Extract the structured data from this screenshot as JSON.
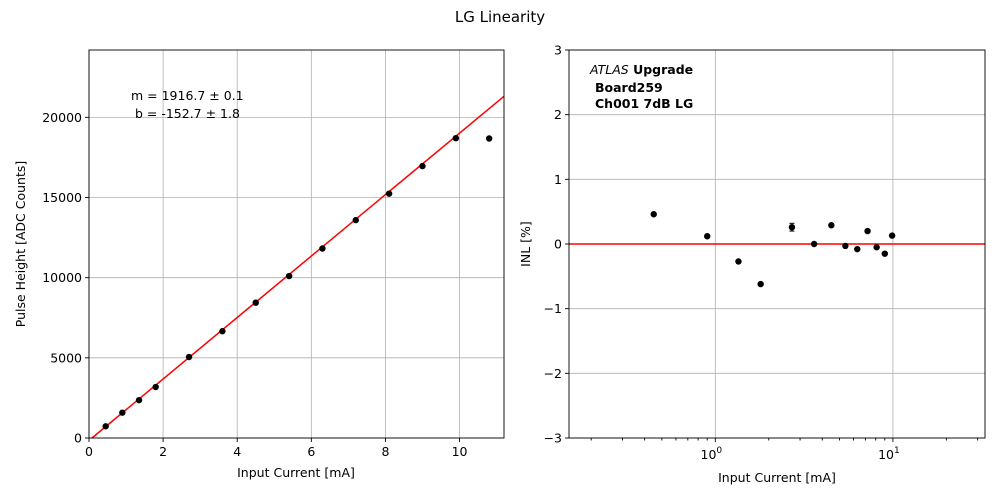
{
  "figure": {
    "title": "LG Linearity"
  },
  "chart_data": [
    {
      "type": "scatter",
      "xlabel": "Input Current [mA]",
      "ylabel": "Pulse Height [ADC Counts]",
      "xlim": [
        0,
        11.2
      ],
      "ylim": [
        0,
        24200
      ],
      "xticks": [
        0,
        2,
        4,
        6,
        8,
        10
      ],
      "xtick_labels": [
        "0",
        "2",
        "4",
        "6",
        "8",
        "10"
      ],
      "yticks": [
        0,
        5000,
        10000,
        15000,
        20000
      ],
      "ytick_labels": [
        "0",
        "5000",
        "10000",
        "15000",
        "20000"
      ],
      "grid": true,
      "points_color": "#000000",
      "fit_color": "#ff0000",
      "fit": {
        "m": 1916.7,
        "b": -152.7
      },
      "fit_text_lines": [
        "m = 1916.7 ± 0.1",
        " b = -152.7 ± 1.8"
      ],
      "x": [
        0.45,
        0.9,
        1.35,
        1.8,
        2.7,
        3.6,
        4.5,
        5.4,
        6.3,
        7.2,
        8.1,
        9.0,
        9.9,
        10.8
      ],
      "y": [
        730,
        1580,
        2360,
        3180,
        5050,
        6660,
        8440,
        10100,
        11820,
        13590,
        15240,
        16960,
        18700,
        18680
      ]
    },
    {
      "type": "scatter",
      "xlabel": "Input Current [mA]",
      "ylabel": "INL [%]",
      "xscale": "log",
      "xlim": [
        0.15,
        33
      ],
      "ylim": [
        -3,
        3
      ],
      "xticks_major": [
        1,
        10
      ],
      "xtick_labels": [
        {
          "base": "10",
          "exp": "0"
        },
        {
          "base": "10",
          "exp": "1"
        }
      ],
      "yticks": [
        -3,
        -2,
        -1,
        0,
        1,
        2,
        3
      ],
      "ytick_labels": [
        "−3",
        "−2",
        "−1",
        "0",
        "1",
        "2",
        "3"
      ],
      "grid": true,
      "points_color": "#000000",
      "reference_line": {
        "y": 0,
        "color": "#ff0000"
      },
      "annotation": {
        "line1_italic": "ATLAS",
        "line1_bold": " Upgrade",
        "line2": "Board259",
        "line3": "Ch001 7dB LG"
      },
      "x": [
        0.45,
        0.9,
        1.35,
        1.8,
        2.7,
        3.6,
        4.5,
        5.4,
        6.3,
        7.2,
        8.1,
        9.0,
        9.9
      ],
      "y": [
        0.46,
        0.12,
        -0.27,
        -0.62,
        0.26,
        0.0,
        0.29,
        -0.03,
        -0.08,
        0.2,
        -0.05,
        -0.15,
        0.13
      ],
      "yerr": [
        0,
        0,
        0,
        0,
        0.06,
        0,
        0,
        0,
        0,
        0,
        0,
        0,
        0
      ]
    }
  ]
}
